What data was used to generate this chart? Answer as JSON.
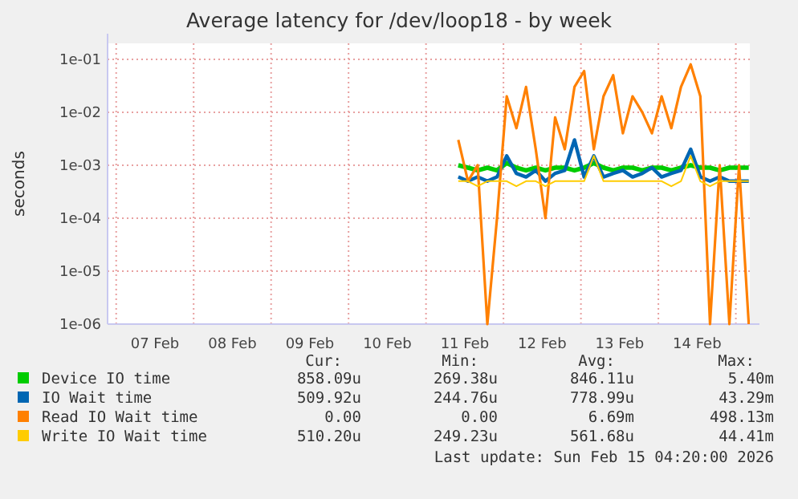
{
  "chart_data": {
    "type": "line",
    "title": "Average latency for /dev/loop18 - by week",
    "ylabel": "seconds",
    "log": "y",
    "grid": true,
    "legend": "bottom",
    "marker": "none",
    "line_style": "solid",
    "xlim": [
      "2026-02-06T21:20",
      "2026-02-15T04:20"
    ],
    "xticks": [
      {
        "value": "2026-02-07T00:00",
        "label": null
      },
      {
        "value": "2026-02-07T12:00",
        "label": "07 Feb"
      },
      {
        "value": "2026-02-08T00:00",
        "label": null
      },
      {
        "value": "2026-02-08T12:00",
        "label": "08 Feb"
      },
      {
        "value": "2026-02-09T00:00",
        "label": null
      },
      {
        "value": "2026-02-09T12:00",
        "label": "09 Feb"
      },
      {
        "value": "2026-02-10T00:00",
        "label": null
      },
      {
        "value": "2026-02-10T12:00",
        "label": "10 Feb"
      },
      {
        "value": "2026-02-11T00:00",
        "label": null
      },
      {
        "value": "2026-02-11T12:00",
        "label": "11 Feb"
      },
      {
        "value": "2026-02-12T00:00",
        "label": null
      },
      {
        "value": "2026-02-12T12:00",
        "label": "12 Feb"
      },
      {
        "value": "2026-02-13T00:00",
        "label": null
      },
      {
        "value": "2026-02-13T12:00",
        "label": "13 Feb"
      },
      {
        "value": "2026-02-14T00:00",
        "label": null
      },
      {
        "value": "2026-02-14T12:00",
        "label": "14 Feb"
      },
      {
        "value": "2026-02-15T00:00",
        "label": null
      }
    ],
    "ylim": [
      1e-06,
      0.2
    ],
    "yticks": [
      {
        "value": 1e-06,
        "label": "1e-06"
      },
      {
        "value": 1e-05,
        "label": "1e-05"
      },
      {
        "value": 0.0001,
        "label": "1e-04"
      },
      {
        "value": 0.001,
        "label": "1e-03"
      },
      {
        "value": 0.01,
        "label": "1e-02"
      },
      {
        "value": 0.1,
        "label": "1e-01"
      }
    ],
    "x": [
      "2026-02-11T10:00",
      "2026-02-11T13:00",
      "2026-02-11T16:00",
      "2026-02-11T19:00",
      "2026-02-11T22:00",
      "2026-02-12T01:00",
      "2026-02-12T04:00",
      "2026-02-12T07:00",
      "2026-02-12T10:00",
      "2026-02-12T13:00",
      "2026-02-12T16:00",
      "2026-02-12T19:00",
      "2026-02-12T22:00",
      "2026-02-13T01:00",
      "2026-02-13T04:00",
      "2026-02-13T07:00",
      "2026-02-13T10:00",
      "2026-02-13T13:00",
      "2026-02-13T16:00",
      "2026-02-13T19:00",
      "2026-02-13T22:00",
      "2026-02-14T01:00",
      "2026-02-14T04:00",
      "2026-02-14T07:00",
      "2026-02-14T10:00",
      "2026-02-14T13:00",
      "2026-02-14T16:00",
      "2026-02-14T19:00",
      "2026-02-14T22:00",
      "2026-02-15T01:00",
      "2026-02-15T04:00"
    ],
    "series": [
      {
        "name": "Device IO time",
        "color": "#00cc00",
        "values": [
          0.001,
          0.0009,
          0.0008,
          0.0009,
          0.0008,
          0.0011,
          0.0009,
          0.0008,
          0.0009,
          0.0008,
          0.0009,
          0.0009,
          0.0008,
          0.0009,
          0.0011,
          0.0009,
          0.0008,
          0.0009,
          0.0009,
          0.0008,
          0.0009,
          0.0009,
          0.0008,
          0.0009,
          0.001,
          0.0009,
          0.0009,
          0.0008,
          0.0009,
          0.0009,
          0.0009
        ]
      },
      {
        "name": "IO Wait time",
        "color": "#0066b3",
        "values": [
          0.0006,
          0.0005,
          0.0006,
          0.0005,
          0.0006,
          0.0015,
          0.0007,
          0.0006,
          0.0008,
          0.0005,
          0.0007,
          0.0008,
          0.003,
          0.0006,
          0.0015,
          0.0006,
          0.0007,
          0.0008,
          0.0006,
          0.0007,
          0.0009,
          0.0006,
          0.0007,
          0.0008,
          0.002,
          0.0006,
          0.0005,
          0.0006,
          0.0005,
          0.0005,
          0.0005
        ]
      },
      {
        "name": "Read IO Wait time",
        "color": "#ff8000",
        "values": [
          0.003,
          0.0005,
          0.001,
          1e-06,
          0.0001,
          0.02,
          0.005,
          0.03,
          0.002,
          0.0001,
          0.008,
          0.002,
          0.03,
          0.06,
          0.002,
          0.02,
          0.05,
          0.004,
          0.02,
          0.01,
          0.004,
          0.02,
          0.005,
          0.03,
          0.08,
          0.02,
          1e-06,
          0.001,
          1e-06,
          0.001,
          1e-06
        ]
      },
      {
        "name": "Write IO Wait time",
        "color": "#ffcc00",
        "values": [
          0.0005,
          0.0005,
          0.0004,
          0.0005,
          0.0005,
          0.0005,
          0.0004,
          0.0005,
          0.0005,
          0.0004,
          0.0005,
          0.0005,
          0.0005,
          0.0005,
          0.0015,
          0.0005,
          0.0005,
          0.0005,
          0.0005,
          0.0005,
          0.0005,
          0.0005,
          0.0004,
          0.0005,
          0.0015,
          0.0005,
          0.0004,
          0.0005,
          0.0005,
          0.0005,
          0.0005
        ]
      }
    ],
    "annotations": [
      "Cur:",
      "Min:",
      "Avg:",
      "Max:",
      "858.09u",
      "269.38u",
      "846.11u",
      "5.40m",
      "509.92u",
      "244.76u",
      "778.99u",
      "43.29m",
      "0.00",
      "0.00",
      "6.69m",
      "498.13m",
      "510.20u",
      "249.23u",
      "561.68u",
      "44.41m",
      "Last update: Sun Feb 15 04:20:00 2026"
    ]
  }
}
